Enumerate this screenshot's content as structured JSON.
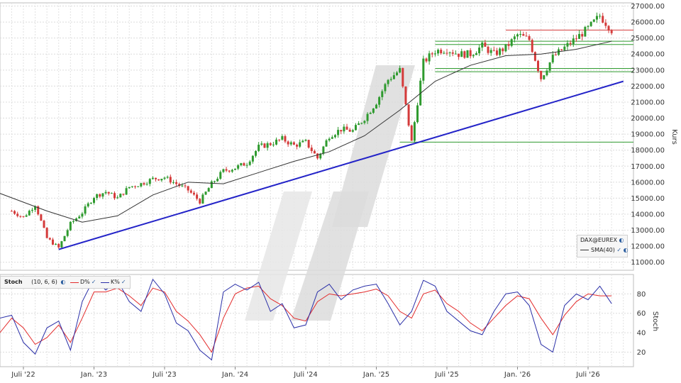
{
  "chart_data": [
    {
      "type": "candlestick",
      "title": "",
      "instrument": "DAX@EUREX",
      "ylabel": "Kurs",
      "ylim": [
        10500,
        27200
      ],
      "y_ticks": [
        "11000.00",
        "12000.00",
        "13000.00",
        "14000.00",
        "15000.00",
        "16000.00",
        "17000.00",
        "18000.00",
        "19000.00",
        "20000.00",
        "21000.00",
        "22000.00",
        "23000.00",
        "24000.00",
        "25000.00",
        "26000.00",
        "27000.00"
      ],
      "x_ticks": [
        "Juli '22",
        "Jan. '23",
        "Juli '23",
        "Jan. '24",
        "Juli '24",
        "Jan. '25",
        "Juli '25",
        "Jan. '26",
        "Juli '26"
      ],
      "price_path": [
        [
          "2022-06",
          14200
        ],
        [
          "2022-07",
          13800
        ],
        [
          "2022-08",
          14600
        ],
        [
          "2022-09",
          12500
        ],
        [
          "2022-10",
          11900
        ],
        [
          "2022-11",
          13400
        ],
        [
          "2022-12",
          14100
        ],
        [
          "2023-01",
          15100
        ],
        [
          "2023-02",
          15400
        ],
        [
          "2023-03",
          15000
        ],
        [
          "2023-04",
          15700
        ],
        [
          "2023-05",
          15900
        ],
        [
          "2023-06",
          16200
        ],
        [
          "2023-07",
          16300
        ],
        [
          "2023-08",
          15900
        ],
        [
          "2023-09",
          15500
        ],
        [
          "2023-10",
          14800
        ],
        [
          "2023-11",
          15900
        ],
        [
          "2023-12",
          16700
        ],
        [
          "2024-01",
          16900
        ],
        [
          "2024-02",
          17200
        ],
        [
          "2024-03",
          18200
        ],
        [
          "2024-04",
          18400
        ],
        [
          "2024-05",
          18700
        ],
        [
          "2024-06",
          18300
        ],
        [
          "2024-07",
          18500
        ],
        [
          "2024-08",
          17500
        ],
        [
          "2024-09",
          18900
        ],
        [
          "2024-10",
          19300
        ],
        [
          "2024-11",
          19200
        ],
        [
          "2024-12",
          20000
        ],
        [
          "2025-01",
          21000
        ],
        [
          "2025-02",
          22400
        ],
        [
          "2025-03",
          23000
        ],
        [
          "2025-04",
          18500
        ],
        [
          "2025-05",
          23500
        ],
        [
          "2025-06",
          24200
        ],
        [
          "2025-07",
          24300
        ],
        [
          "2025-08",
          24000
        ],
        [
          "2025-09",
          24000
        ],
        [
          "2025-10",
          24500
        ],
        [
          "2025-11",
          24000
        ],
        [
          "2025-12",
          24400
        ],
        [
          "2026-01",
          25200
        ],
        [
          "2026-02",
          24900
        ],
        [
          "2026-03",
          22500
        ],
        [
          "2026-04",
          23800
        ],
        [
          "2026-05",
          24400
        ],
        [
          "2026-06",
          25000
        ],
        [
          "2026-07",
          25600
        ],
        [
          "2026-08",
          26400
        ],
        [
          "2026-09",
          25500
        ]
      ],
      "sma_label": "SMA(40)",
      "sma_path": [
        [
          "2022-05",
          15300
        ],
        [
          "2022-09",
          14200
        ],
        [
          "2022-12",
          13500
        ],
        [
          "2023-03",
          13900
        ],
        [
          "2023-06",
          15200
        ],
        [
          "2023-09",
          16000
        ],
        [
          "2023-12",
          15900
        ],
        [
          "2024-03",
          16600
        ],
        [
          "2024-06",
          17300
        ],
        [
          "2024-09",
          17900
        ],
        [
          "2024-12",
          18900
        ],
        [
          "2025-03",
          20500
        ],
        [
          "2025-06",
          22300
        ],
        [
          "2025-09",
          23300
        ],
        [
          "2025-12",
          23900
        ],
        [
          "2026-03",
          24000
        ],
        [
          "2026-06",
          24300
        ],
        [
          "2026-09",
          24800
        ]
      ],
      "trendline": [
        [
          "2022-10",
          11800
        ],
        [
          "2026-10",
          22300
        ]
      ],
      "horizontal_levels": [
        {
          "value": 25500,
          "color": "#d43a3a",
          "from": "2025-12",
          "to": "2026-10"
        },
        {
          "value": 24800,
          "color": "#2e9a2e",
          "from": "2025-06",
          "to": "2026-10"
        },
        {
          "value": 24600,
          "color": "#2e9a2e",
          "from": "2025-06",
          "to": "2026-10"
        },
        {
          "value": 23100,
          "color": "#2e9a2e",
          "from": "2025-06",
          "to": "2026-10"
        },
        {
          "value": 22900,
          "color": "#2e9a2e",
          "from": "2025-06",
          "to": "2026-10"
        },
        {
          "value": 18500,
          "color": "#2e9a2e",
          "from": "2025-03",
          "to": "2026-10"
        }
      ],
      "up_color": "#2e9a2e",
      "down_color": "#d43a3a"
    },
    {
      "type": "line",
      "title": "",
      "indicator": "Stoch",
      "params": "(10, 6, 6)",
      "ylabel": "Stoch",
      "ylim": [
        5,
        100
      ],
      "y_ticks": [
        "20",
        "40",
        "60",
        "80"
      ],
      "series": [
        {
          "name": "D%",
          "color": "#e32b2b",
          "path": [
            [
              "2022-05",
              40
            ],
            [
              "2022-06",
              55
            ],
            [
              "2022-07",
              45
            ],
            [
              "2022-08",
              28
            ],
            [
              "2022-09",
              35
            ],
            [
              "2022-10",
              48
            ],
            [
              "2022-11",
              30
            ],
            [
              "2022-12",
              55
            ],
            [
              "2023-01",
              82
            ],
            [
              "2023-02",
              82
            ],
            [
              "2023-03",
              86
            ],
            [
              "2023-04",
              78
            ],
            [
              "2023-05",
              68
            ],
            [
              "2023-06",
              86
            ],
            [
              "2023-07",
              82
            ],
            [
              "2023-08",
              62
            ],
            [
              "2023-09",
              52
            ],
            [
              "2023-10",
              38
            ],
            [
              "2023-11",
              20
            ],
            [
              "2023-12",
              55
            ],
            [
              "2024-01",
              80
            ],
            [
              "2024-02",
              86
            ],
            [
              "2024-03",
              88
            ],
            [
              "2024-04",
              75
            ],
            [
              "2024-05",
              68
            ],
            [
              "2024-06",
              55
            ],
            [
              "2024-07",
              52
            ],
            [
              "2024-08",
              72
            ],
            [
              "2024-09",
              80
            ],
            [
              "2024-10",
              78
            ],
            [
              "2024-11",
              80
            ],
            [
              "2024-12",
              82
            ],
            [
              "2025-01",
              85
            ],
            [
              "2025-02",
              78
            ],
            [
              "2025-03",
              62
            ],
            [
              "2025-04",
              55
            ],
            [
              "2025-05",
              80
            ],
            [
              "2025-06",
              84
            ],
            [
              "2025-07",
              70
            ],
            [
              "2025-08",
              62
            ],
            [
              "2025-09",
              50
            ],
            [
              "2025-10",
              42
            ],
            [
              "2025-11",
              55
            ],
            [
              "2025-12",
              68
            ],
            [
              "2026-01",
              78
            ],
            [
              "2026-02",
              75
            ],
            [
              "2026-03",
              55
            ],
            [
              "2026-04",
              38
            ],
            [
              "2026-05",
              58
            ],
            [
              "2026-06",
              72
            ],
            [
              "2026-07",
              80
            ],
            [
              "2026-08",
              78
            ],
            [
              "2026-09",
              78
            ]
          ]
        },
        {
          "name": "K%",
          "color": "#2a2fa8",
          "path": [
            [
              "2022-05",
              55
            ],
            [
              "2022-06",
              58
            ],
            [
              "2022-07",
              30
            ],
            [
              "2022-08",
              18
            ],
            [
              "2022-09",
              45
            ],
            [
              "2022-10",
              52
            ],
            [
              "2022-11",
              22
            ],
            [
              "2022-12",
              72
            ],
            [
              "2023-01",
              96
            ],
            [
              "2023-02",
              84
            ],
            [
              "2023-03",
              94
            ],
            [
              "2023-04",
              72
            ],
            [
              "2023-05",
              62
            ],
            [
              "2023-06",
              95
            ],
            [
              "2023-07",
              80
            ],
            [
              "2023-08",
              50
            ],
            [
              "2023-09",
              42
            ],
            [
              "2023-10",
              22
            ],
            [
              "2023-11",
              12
            ],
            [
              "2023-12",
              82
            ],
            [
              "2024-01",
              90
            ],
            [
              "2024-02",
              84
            ],
            [
              "2024-03",
              92
            ],
            [
              "2024-04",
              62
            ],
            [
              "2024-05",
              70
            ],
            [
              "2024-06",
              45
            ],
            [
              "2024-07",
              48
            ],
            [
              "2024-08",
              82
            ],
            [
              "2024-09",
              90
            ],
            [
              "2024-10",
              74
            ],
            [
              "2024-11",
              84
            ],
            [
              "2024-12",
              88
            ],
            [
              "2025-01",
              90
            ],
            [
              "2025-02",
              70
            ],
            [
              "2025-03",
              48
            ],
            [
              "2025-04",
              62
            ],
            [
              "2025-05",
              94
            ],
            [
              "2025-06",
              88
            ],
            [
              "2025-07",
              62
            ],
            [
              "2025-08",
              52
            ],
            [
              "2025-09",
              42
            ],
            [
              "2025-10",
              38
            ],
            [
              "2025-11",
              62
            ],
            [
              "2025-12",
              80
            ],
            [
              "2026-01",
              82
            ],
            [
              "2026-02",
              68
            ],
            [
              "2026-03",
              28
            ],
            [
              "2026-04",
              20
            ],
            [
              "2026-05",
              68
            ],
            [
              "2026-06",
              80
            ],
            [
              "2026-07",
              74
            ],
            [
              "2026-08",
              88
            ],
            [
              "2026-09",
              70
            ]
          ]
        }
      ]
    }
  ]
}
